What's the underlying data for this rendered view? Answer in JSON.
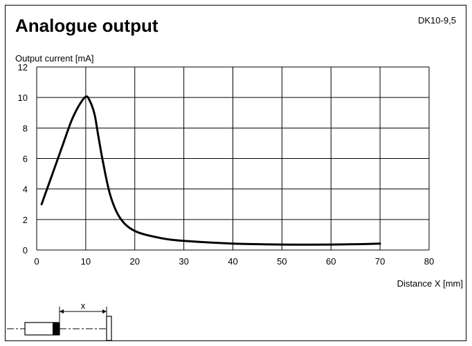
{
  "header": {
    "title": "Analogue output",
    "code": "DK10-9,5"
  },
  "chart_data": {
    "type": "line",
    "title": "Analogue output",
    "xlabel": "Distance X [mm]",
    "ylabel": "Output current [mA]",
    "xlim": [
      0,
      80
    ],
    "ylim": [
      0,
      12
    ],
    "x_ticks": [
      "0",
      "10",
      "20",
      "30",
      "40",
      "50",
      "60",
      "70",
      "80"
    ],
    "y_ticks": [
      "0",
      "2",
      "4",
      "6",
      "8",
      "10",
      "12"
    ],
    "grid": true,
    "series": [
      {
        "x": [
          1,
          3,
          5,
          7,
          8.5,
          10,
          10.8,
          11.8,
          12.5,
          13.5,
          15,
          17,
          20,
          25,
          30,
          40,
          50,
          55,
          60,
          65,
          70
        ],
        "values": [
          3.0,
          4.8,
          6.6,
          8.4,
          9.4,
          10.05,
          9.8,
          8.9,
          7.6,
          5.8,
          3.6,
          2.1,
          1.25,
          0.8,
          0.6,
          0.42,
          0.36,
          0.35,
          0.36,
          0.38,
          0.42
        ]
      }
    ]
  },
  "diagram": {
    "x_label": "x"
  }
}
